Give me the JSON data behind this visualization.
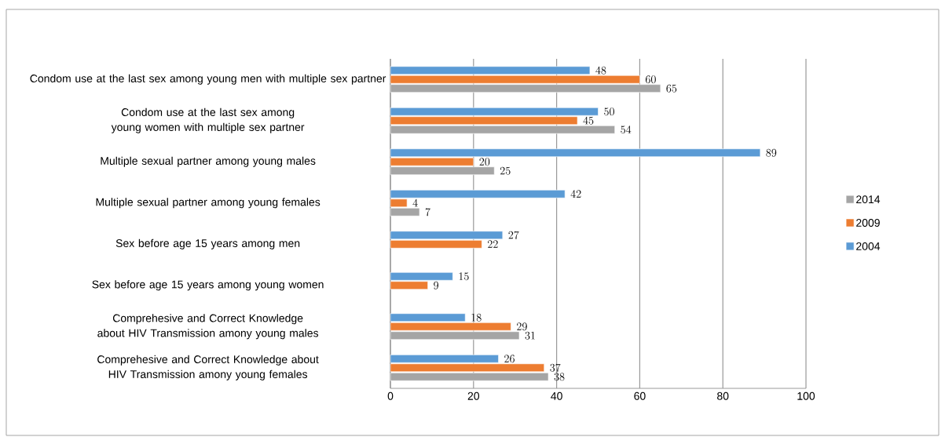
{
  "chart_data": {
    "type": "bar",
    "orientation": "horizontal",
    "categories": [
      "Condom use at the last sex among young men with multiple sex partner",
      "Condom use at the last sex among young women with multiple sex partner",
      "Multiple sexual partner among young males",
      "Multiple sexual partner among young females",
      "Sex before age 15 years among men",
      "Sex before age 15 years among young women",
      "Comprehesive and Correct Knowledge about HIV Transmission amony young males",
      "Comprehesive and Correct Knowledge about HIV Transmission amony young females"
    ],
    "series": [
      {
        "name": "2014",
        "color": "#a5a5a5",
        "values": [
          65,
          54,
          25,
          7,
          null,
          null,
          31,
          38
        ]
      },
      {
        "name": "2009",
        "color": "#ed7d31",
        "values": [
          60,
          45,
          20,
          4,
          22,
          9,
          29,
          37
        ]
      },
      {
        "name": "2004",
        "color": "#5b9bd5",
        "values": [
          48,
          50,
          89,
          42,
          27,
          15,
          18,
          26
        ]
      }
    ],
    "xlim": [
      0,
      100
    ],
    "xticks": [
      0,
      20,
      40,
      60,
      80,
      100
    ],
    "grid": "x",
    "legend": "right",
    "data_labels": true
  }
}
